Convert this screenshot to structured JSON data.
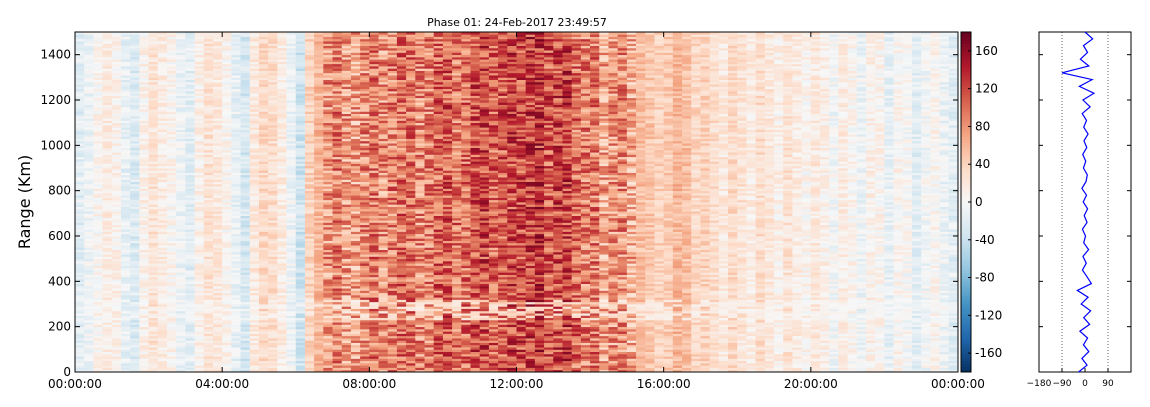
{
  "chart_data": [
    {
      "type": "heatmap",
      "title": "Phase 01: 24-Feb-2017 23:49:57",
      "xlabel": "",
      "ylabel": "Range (Km)",
      "x_ticks": [
        "00:00:00",
        "04:00:00",
        "08:00:00",
        "12:00:00",
        "16:00:00",
        "20:00:00",
        "00:00:00"
      ],
      "x_range_hours": [
        0,
        24
      ],
      "y_ticks": [
        0,
        200,
        400,
        600,
        800,
        1000,
        1200,
        1400
      ],
      "ylim": [
        0,
        1500
      ],
      "column_step_hours": 0.25,
      "row_step_km": 10,
      "background_stripe_phase": [
        -20,
        -10,
        5,
        15,
        10,
        -15,
        -25,
        10,
        25,
        15,
        5,
        -10,
        -20,
        10,
        25,
        20,
        5,
        -15,
        -30,
        20,
        35,
        30,
        15,
        -10,
        -35,
        40,
        60,
        80,
        90,
        75,
        70,
        85,
        95,
        80,
        90,
        100,
        95,
        85,
        90,
        105,
        110,
        95,
        100,
        115,
        120,
        105,
        110,
        120,
        115,
        125,
        130,
        110,
        120,
        125,
        100,
        90,
        95,
        70,
        80,
        85,
        65,
        55,
        50,
        40,
        45,
        60,
        55,
        35,
        40,
        30,
        20,
        35,
        25,
        15,
        30,
        20,
        10,
        25,
        15,
        5,
        20,
        10,
        -5,
        15,
        5,
        -10,
        10,
        5,
        -15,
        5,
        0,
        -20,
        -5,
        5,
        -10,
        -20
      ],
      "colorbar": {
        "ticks": [
          160,
          120,
          80,
          40,
          0,
          -40,
          -80,
          -120,
          -160
        ],
        "vmin": -180,
        "vmax": 180,
        "colormap": "RdBu_r",
        "colors": [
          "#053061",
          "#2166ac",
          "#4393c3",
          "#92c5de",
          "#d1e5f0",
          "#f7f7f7",
          "#fddbc7",
          "#f4a582",
          "#d6604d",
          "#b2182b",
          "#67001f"
        ]
      }
    },
    {
      "type": "line",
      "title": "",
      "xlabel": "",
      "ylabel": "",
      "x_ticks": [
        -180,
        -90,
        0,
        90
      ],
      "xlim": [
        -180,
        180
      ],
      "ylim": [
        0,
        1500
      ],
      "reference_lines_x": [
        -90,
        90
      ],
      "series": [
        {
          "color": "#0000ff",
          "range_km": [
            0,
            30,
            60,
            90,
            120,
            150,
            180,
            210,
            240,
            270,
            300,
            330,
            360,
            390,
            420,
            450,
            480,
            510,
            540,
            570,
            600,
            630,
            660,
            690,
            720,
            750,
            780,
            810,
            840,
            870,
            900,
            930,
            960,
            990,
            1020,
            1050,
            1080,
            1110,
            1140,
            1170,
            1200,
            1230,
            1260,
            1290,
            1320,
            1350,
            1380,
            1410,
            1440,
            1470,
            1500
          ],
          "phase_deg": [
            -25,
            8,
            -12,
            15,
            -6,
            10,
            -20,
            18,
            -5,
            22,
            -15,
            12,
            -30,
            25,
            8,
            -10,
            5,
            -8,
            14,
            -5,
            2,
            -10,
            8,
            -3,
            10,
            -7,
            6,
            -12,
            4,
            9,
            -6,
            3,
            -9,
            7,
            -4,
            12,
            -5,
            6,
            -11,
            20,
            -8,
            35,
            -22,
            28,
            -90,
            15,
            -18,
            10,
            -6,
            30,
            0
          ]
        }
      ]
    }
  ]
}
